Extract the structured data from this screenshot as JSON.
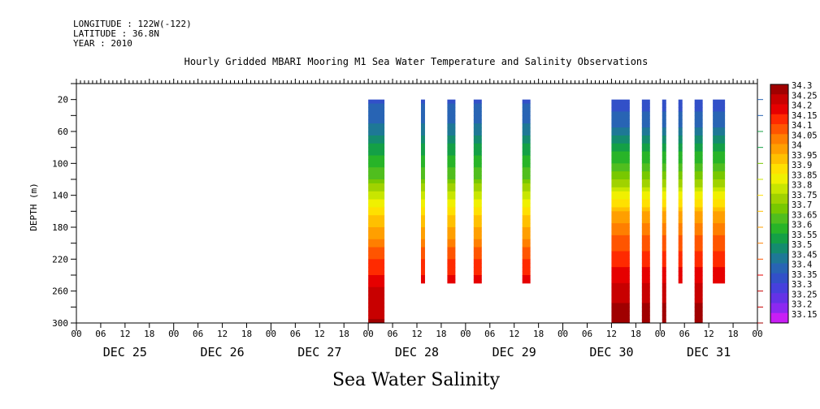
{
  "header": {
    "longitude": "LONGITUDE : 122W(-122)",
    "latitude": "LATITUDE : 36.8N",
    "year": "YEAR : 2010"
  },
  "chart_data": {
    "type": "heatmap",
    "title": "Hourly Gridded MBARI Mooring M1 Sea Water Temperature and Salinity Observations",
    "subtitle": "Sea Water Salinity",
    "ylabel": "DEPTH (m)",
    "xlabel": "",
    "x_range_hours": [
      0,
      168
    ],
    "x_hour_ticks": [
      "00",
      "06",
      "12",
      "18",
      "00",
      "06",
      "12",
      "18",
      "00",
      "06",
      "12",
      "18",
      "00",
      "06",
      "12",
      "18",
      "00",
      "06",
      "12",
      "18",
      "00",
      "06",
      "12",
      "18",
      "00",
      "06",
      "12",
      "18",
      "00"
    ],
    "day_labels": [
      {
        "label": "DEC 25",
        "start_hour": 0
      },
      {
        "label": "DEC 26",
        "start_hour": 24
      },
      {
        "label": "DEC 27",
        "start_hour": 48
      },
      {
        "label": "DEC 28",
        "start_hour": 72
      },
      {
        "label": "DEC 29",
        "start_hour": 96
      },
      {
        "label": "DEC 30",
        "start_hour": 120
      },
      {
        "label": "DEC 31",
        "start_hour": 144
      }
    ],
    "y_ticks": [
      20,
      60,
      100,
      140,
      180,
      220,
      260,
      300
    ],
    "y_range": [
      0,
      300
    ],
    "colorbar_levels": [
      "34.3",
      "34.25",
      "34.2",
      "34.15",
      "34.1",
      "34.05",
      "34",
      "33.95",
      "33.9",
      "33.85",
      "33.8",
      "33.75",
      "33.7",
      "33.65",
      "33.6",
      "33.55",
      "33.5",
      "33.45",
      "33.4",
      "33.35",
      "33.3",
      "33.25",
      "33.2",
      "33.15"
    ],
    "colorbar_colors": [
      "#a00000",
      "#c80000",
      "#e60000",
      "#ff2a00",
      "#ff5500",
      "#ff7f00",
      "#ff9f00",
      "#ffc000",
      "#ffe000",
      "#f0f000",
      "#c8e600",
      "#a0d200",
      "#78c800",
      "#50be1e",
      "#28b428",
      "#14a046",
      "#148c6e",
      "#1e7896",
      "#2864b4",
      "#3250c8",
      "#4640dc",
      "#6432e6",
      "#8c28f0",
      "#c81ef5"
    ],
    "profile_depths": [
      20,
      40,
      60,
      80,
      100,
      120,
      140,
      160,
      180,
      200,
      220,
      240,
      250,
      270,
      300
    ],
    "profiles": {
      "standard": [
        33.37,
        33.4,
        33.46,
        33.55,
        33.6,
        33.68,
        33.8,
        33.9,
        33.97,
        34.05,
        34.12,
        34.18,
        34.22,
        34.25,
        34.28
      ],
      "deep": [
        33.35,
        33.38,
        33.45,
        33.55,
        33.63,
        33.72,
        33.85,
        33.97,
        34.05,
        34.1,
        34.15,
        34.2,
        34.23,
        34.27,
        34.3
      ]
    },
    "series": [
      {
        "start_hour": 72.0,
        "end_hour": 76.0,
        "max_depth": 300,
        "profile": "standard"
      },
      {
        "start_hour": 85.0,
        "end_hour": 86.0,
        "max_depth": 250,
        "profile": "standard"
      },
      {
        "start_hour": 91.5,
        "end_hour": 93.5,
        "max_depth": 250,
        "profile": "standard"
      },
      {
        "start_hour": 98.0,
        "end_hour": 100.0,
        "max_depth": 250,
        "profile": "standard"
      },
      {
        "start_hour": 110.0,
        "end_hour": 112.0,
        "max_depth": 250,
        "profile": "standard"
      },
      {
        "start_hour": 132.0,
        "end_hour": 136.5,
        "max_depth": 300,
        "profile": "deep"
      },
      {
        "start_hour": 139.5,
        "end_hour": 141.5,
        "max_depth": 300,
        "profile": "deep"
      },
      {
        "start_hour": 144.5,
        "end_hour": 145.5,
        "max_depth": 300,
        "profile": "deep"
      },
      {
        "start_hour": 148.5,
        "end_hour": 149.5,
        "max_depth": 250,
        "profile": "deep"
      },
      {
        "start_hour": 152.5,
        "end_hour": 154.5,
        "max_depth": 300,
        "profile": "deep"
      },
      {
        "start_hour": 157.0,
        "end_hour": 160.0,
        "max_depth": 250,
        "profile": "deep"
      }
    ]
  }
}
